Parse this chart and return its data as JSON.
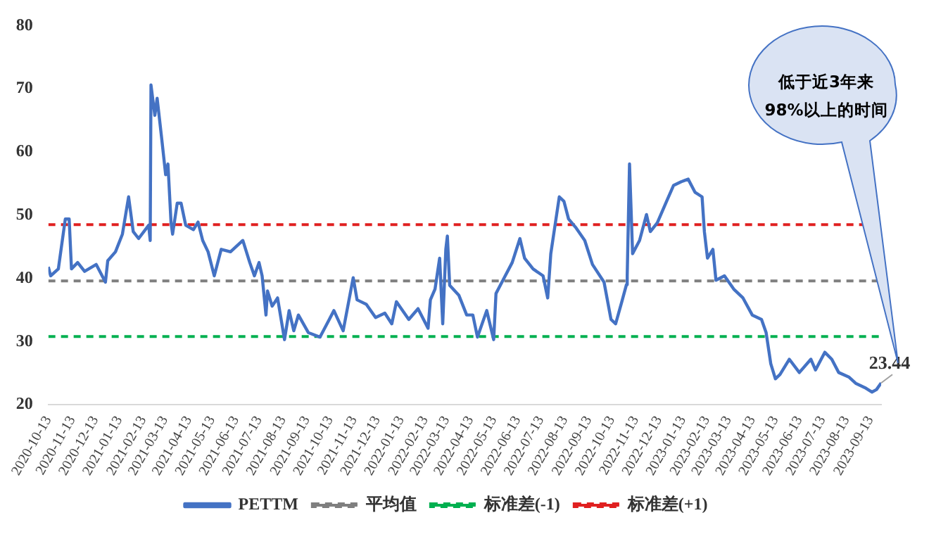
{
  "chart_data": {
    "type": "line",
    "xlim": [
      "2020-10-13",
      "2023-09-27"
    ],
    "ylim": [
      20,
      80
    ],
    "yticks": [
      20,
      30,
      40,
      50,
      60,
      70,
      80
    ],
    "xticks": [
      "2020-10-13",
      "2020-11-13",
      "2020-12-13",
      "2021-01-13",
      "2021-02-13",
      "2021-03-13",
      "2021-04-13",
      "2021-05-13",
      "2021-06-13",
      "2021-07-13",
      "2021-08-13",
      "2021-09-13",
      "2021-10-13",
      "2021-11-13",
      "2021-12-13",
      "2022-01-13",
      "2022-02-13",
      "2022-03-13",
      "2022-04-13",
      "2022-05-13",
      "2022-06-13",
      "2022-07-13",
      "2022-08-13",
      "2022-09-13",
      "2022-10-13",
      "2022-11-13",
      "2022-12-13",
      "2023-01-13",
      "2023-02-13",
      "2023-03-13",
      "2023-04-13",
      "2023-05-13",
      "2023-06-13",
      "2023-07-13",
      "2023-08-13",
      "2023-09-13"
    ],
    "x": [
      "2020-10-13",
      "2020-10-16",
      "2020-10-26",
      "2020-11-04",
      "2020-11-09",
      "2020-11-12",
      "2020-11-20",
      "2020-11-29",
      "2020-12-14",
      "2020-12-26",
      "2020-12-29",
      "2021-01-08",
      "2021-01-17",
      "2021-01-25",
      "2021-01-31",
      "2021-02-07",
      "2021-02-20",
      "2021-02-22",
      "2021-02-23",
      "2021-02-28",
      "2021-03-03",
      "2021-03-09",
      "2021-03-14",
      "2021-03-17",
      "2021-03-21",
      "2021-03-23",
      "2021-03-29",
      "2021-04-03",
      "2021-04-09",
      "2021-04-19",
      "2021-04-25",
      "2021-05-01",
      "2021-05-08",
      "2021-05-16",
      "2021-05-25",
      "2021-06-06",
      "2021-06-22",
      "2021-07-01",
      "2021-07-07",
      "2021-07-13",
      "2021-07-17",
      "2021-07-22",
      "2021-07-24",
      "2021-07-30",
      "2021-08-06",
      "2021-08-15",
      "2021-08-21",
      "2021-08-27",
      "2021-09-02",
      "2021-09-15",
      "2021-09-30",
      "2021-10-12",
      "2021-10-18",
      "2021-10-30",
      "2021-11-12",
      "2021-11-17",
      "2021-11-29",
      "2021-12-11",
      "2021-12-23",
      "2022-01-01",
      "2022-01-07",
      "2022-01-23",
      "2022-02-04",
      "2022-02-17",
      "2022-02-20",
      "2022-02-26",
      "2022-03-04",
      "2022-03-08",
      "2022-03-12",
      "2022-03-14",
      "2022-03-17",
      "2022-03-29",
      "2022-04-08",
      "2022-04-16",
      "2022-04-22",
      "2022-05-04",
      "2022-05-13",
      "2022-05-16",
      "2022-05-25",
      "2022-06-06",
      "2022-06-16",
      "2022-06-22",
      "2022-07-03",
      "2022-07-16",
      "2022-07-22",
      "2022-07-26",
      "2022-08-06",
      "2022-08-12",
      "2022-08-18",
      "2022-08-27",
      "2022-09-08",
      "2022-09-18",
      "2022-10-03",
      "2022-10-12",
      "2022-10-18",
      "2022-10-26",
      "2022-11-01",
      "2022-11-02",
      "2022-11-05",
      "2022-11-09",
      "2022-11-18",
      "2022-11-27",
      "2022-12-02",
      "2022-12-11",
      "2022-12-23",
      "2023-01-01",
      "2023-01-11",
      "2023-01-20",
      "2023-01-29",
      "2023-02-07",
      "2023-02-10",
      "2023-02-14",
      "2023-02-21",
      "2023-02-25",
      "2023-03-08",
      "2023-03-20",
      "2023-04-01",
      "2023-04-13",
      "2023-04-25",
      "2023-05-01",
      "2023-05-07",
      "2023-05-13",
      "2023-05-19",
      "2023-05-31",
      "2023-06-13",
      "2023-06-28",
      "2023-07-04",
      "2023-07-16",
      "2023-07-25",
      "2023-08-03",
      "2023-08-16",
      "2023-08-25",
      "2023-09-06",
      "2023-09-15",
      "2023-09-21",
      "2023-09-27"
    ],
    "series": [
      {
        "name": "PETTM",
        "color": "#4472c4",
        "values": [
          41.8,
          40.4,
          41.5,
          49.4,
          49.4,
          41.5,
          42.5,
          41.1,
          42.2,
          39.4,
          42.8,
          44.2,
          47,
          52.9,
          47.4,
          46.3,
          48.4,
          46,
          70.6,
          65.8,
          68.5,
          62,
          56.4,
          58.1,
          48.8,
          47,
          51.9,
          51.9,
          48.4,
          47.7,
          48.9,
          46,
          44.2,
          40.4,
          44.6,
          44.2,
          46,
          42.5,
          40.4,
          42.5,
          40.4,
          34.2,
          38,
          35.6,
          36.9,
          30.3,
          34.9,
          31.7,
          34.2,
          31.4,
          30.7,
          33.5,
          34.9,
          31.7,
          40.1,
          36.6,
          35.9,
          33.8,
          34.5,
          32.8,
          36.3,
          33.5,
          35.2,
          32.1,
          36.6,
          38.3,
          43.2,
          32.8,
          44.6,
          46.7,
          38.9,
          37.3,
          34.2,
          34.2,
          30.7,
          34.9,
          30.3,
          37.6,
          39.7,
          42.5,
          46.3,
          43.2,
          41.5,
          40.4,
          36.9,
          43.9,
          52.9,
          52.2,
          49.4,
          48.1,
          46,
          42.2,
          39.4,
          33.5,
          32.8,
          36.3,
          39,
          40.4,
          58.1,
          43.9,
          46,
          50.1,
          47.4,
          48.8,
          52.2,
          54.7,
          55.3,
          55.7,
          53.6,
          52.9,
          47.4,
          43.2,
          44.6,
          39.7,
          40.4,
          38.3,
          36.9,
          34.2,
          33.5,
          31.4,
          26.5,
          24.1,
          24.8,
          27.2,
          25.1,
          27.2,
          25.5,
          28.3,
          27.2,
          25.1,
          24.4,
          23.4,
          22.7,
          22,
          22.4,
          23.44
        ]
      }
    ],
    "ref_lines": [
      {
        "axis": "y",
        "value": 39.6,
        "label": "平均值",
        "color": "#7f7f7f",
        "line_style": "dashed"
      },
      {
        "axis": "y",
        "value": 30.8,
        "label": "标准差(-1)",
        "color": "#00b050",
        "line_style": "dashed"
      },
      {
        "axis": "y",
        "value": 48.5,
        "label": "标准差(+1)",
        "color": "#e02020",
        "line_style": "dashed"
      }
    ],
    "annotations": [
      {
        "text": "23.44",
        "x": "2023-09-27",
        "y": 23.44
      },
      "低于近3年来\n98%以上的时间"
    ],
    "legend": "bottom",
    "grid": false,
    "marker": "none",
    "line_style": "solid"
  }
}
